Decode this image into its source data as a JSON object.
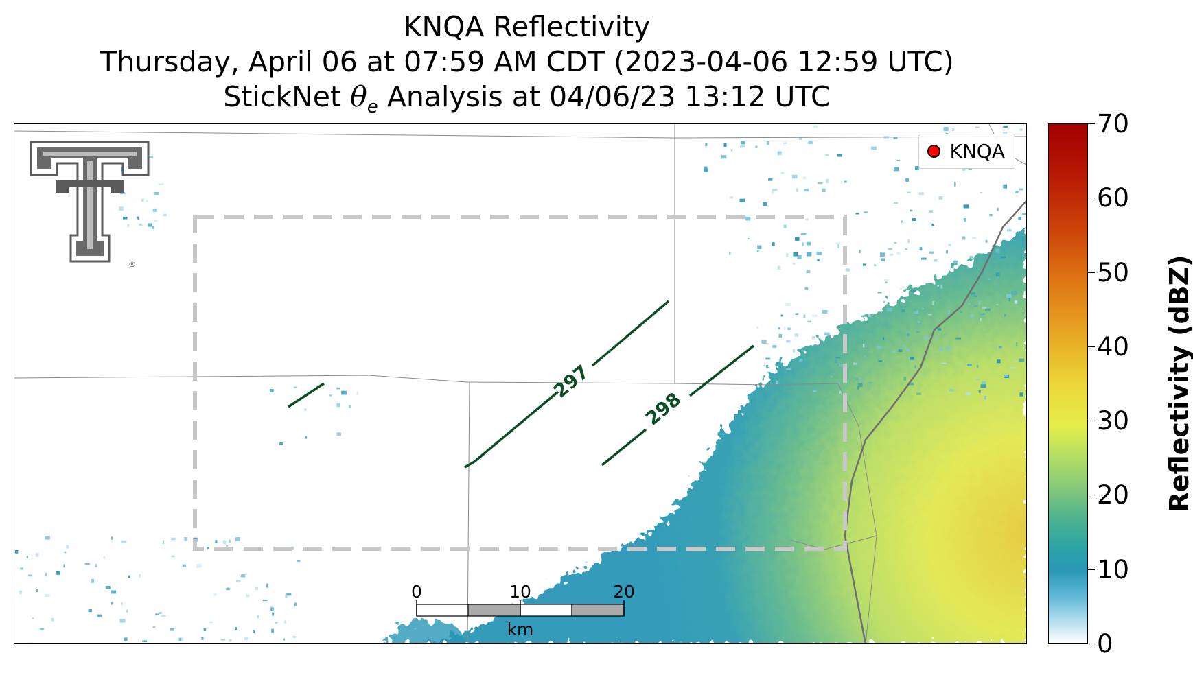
{
  "title": {
    "line1": "KNQA Reflectivity",
    "line2": "Thursday, April 06 at 07:59 AM CDT (2023-04-06 12:59 UTC)",
    "line3_before": "StickNet ",
    "line3_symbol": "θ",
    "line3_subscript": "e",
    "line3_after": " Analysis at 04/06/23 13:12 UTC"
  },
  "legend": {
    "label": "KNQA",
    "marker_color": "#ff0000"
  },
  "logo": {
    "icon": "texas-tech-double-t-logo",
    "mark": "®"
  },
  "contours": [
    {
      "label": "297",
      "color": "#0b4d24"
    },
    {
      "label": "298",
      "color": "#0b4d24"
    }
  ],
  "analysis_box": {
    "style": "dashed",
    "color": "#c8c8c8"
  },
  "scale_bar": {
    "labels": [
      "0",
      "10",
      "20"
    ],
    "unit": "km"
  },
  "colorbar": {
    "label": "Reflectivity (dBZ)",
    "min": 0,
    "max": 70,
    "ticks": [
      "0",
      "10",
      "20",
      "30",
      "40",
      "50",
      "60",
      "70"
    ]
  },
  "colors": {
    "reflectivity_low": "#2a97b7",
    "reflectivity_mid": "#b4df63",
    "reflectivity_high": "#e5c93a",
    "boundary": "#808080"
  }
}
